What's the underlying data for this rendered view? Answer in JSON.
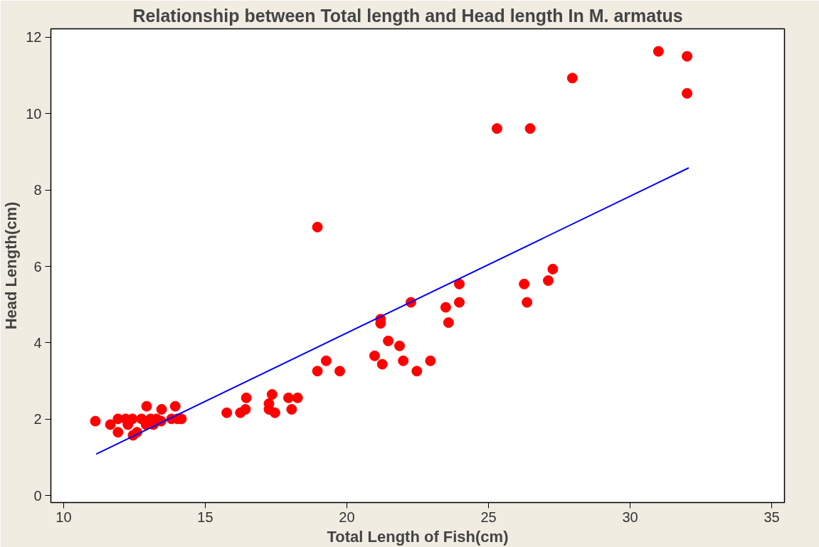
{
  "chart_data": {
    "type": "scatter",
    "title": "Relationship between  Total length and  Head  length In  M. armatus",
    "xlabel": "Total Length of Fish(cm)",
    "ylabel": "Head Length(cm)",
    "xlim": [
      9.55,
      35.45
    ],
    "ylim": [
      -0.18,
      12.22
    ],
    "xticks": [
      10,
      15,
      20,
      25,
      30,
      35
    ],
    "yticks": [
      0,
      2,
      4,
      6,
      8,
      10,
      12
    ],
    "grid": false,
    "series": [
      {
        "marker": "circle",
        "color": "#ff0000",
        "x": [
          11.12,
          11.65,
          11.92,
          11.92,
          12.19,
          12.27,
          12.43,
          12.45,
          12.59,
          12.75,
          12.91,
          12.93,
          13.07,
          13.17,
          13.28,
          13.44,
          13.46,
          13.81,
          13.94,
          14.02,
          14.16,
          15.76,
          16.24,
          16.45,
          16.42,
          17.25,
          17.36,
          17.25,
          17.46,
          17.94,
          18.05,
          18.26,
          18.96,
          18.96,
          19.27,
          19.75,
          20.98,
          21.25,
          21.19,
          21.19,
          21.46,
          21.86,
          21.99,
          22.26,
          22.47,
          22.95,
          23.49,
          23.59,
          23.97,
          23.97,
          25.3,
          26.26,
          26.36,
          26.47,
          27.11,
          27.27,
          27.96,
          31.0,
          32.01,
          32.01
        ],
        "values": [
          1.95,
          1.86,
          2.01,
          1.66,
          2.01,
          1.86,
          2.01,
          1.58,
          1.66,
          2.01,
          1.86,
          2.34,
          2.01,
          1.86,
          2.01,
          1.95,
          2.26,
          2.01,
          2.34,
          2.01,
          2.01,
          2.17,
          2.17,
          2.56,
          2.26,
          2.41,
          2.65,
          2.26,
          2.17,
          2.56,
          2.26,
          2.56,
          7.03,
          3.26,
          3.53,
          3.26,
          3.66,
          3.44,
          4.62,
          4.51,
          4.05,
          3.92,
          3.53,
          5.06,
          3.26,
          3.53,
          4.93,
          4.53,
          5.54,
          5.06,
          9.61,
          5.54,
          5.06,
          9.61,
          5.63,
          5.93,
          10.93,
          11.63,
          11.5,
          10.53
        ]
      },
      {
        "type": "line",
        "color": "#0000ff",
        "line_style": "solid",
        "x": [
          11.15,
          32.07
        ],
        "values": [
          1.09,
          8.58
        ]
      }
    ]
  }
}
